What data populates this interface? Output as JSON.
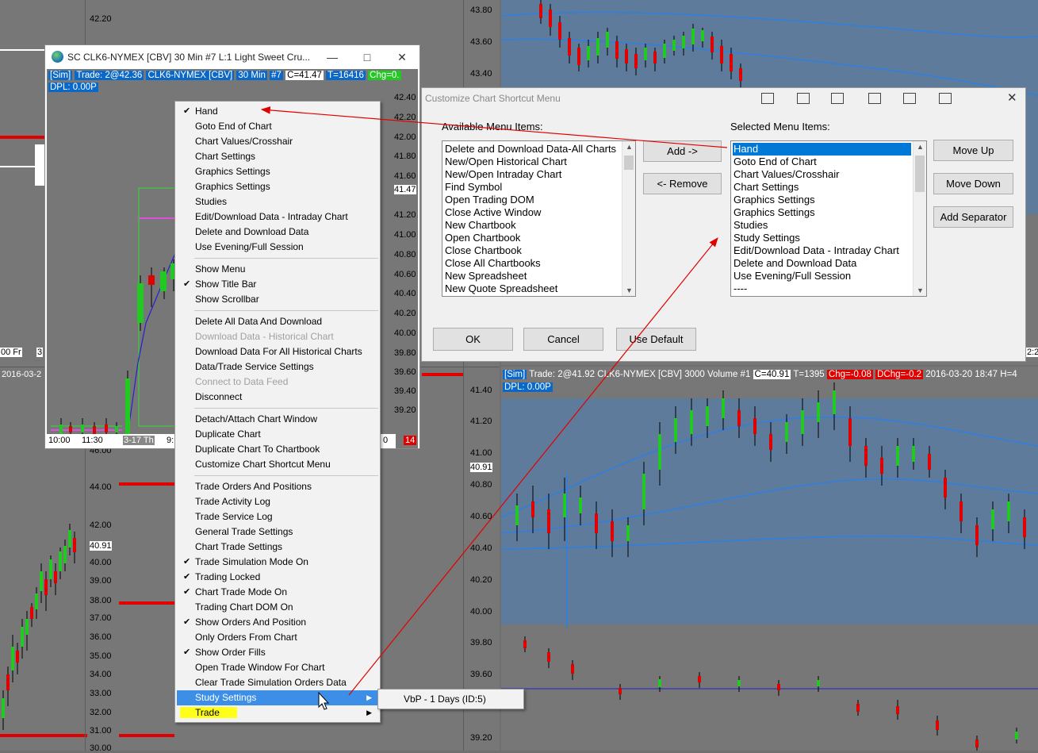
{
  "left_axis": [
    "42.20",
    "46.00",
    "44.00",
    "42.00",
    "40.91",
    "40.00",
    "39.00",
    "38.00",
    "37.00",
    "36.00",
    "35.00",
    "34.00",
    "33.00",
    "32.00",
    "31.00",
    "30.00"
  ],
  "left_chart": {
    "date_label": "2016-03-2",
    "bottom_labels": [
      "00 Fr",
      "3"
    ]
  },
  "mid_axis": [
    "43.80",
    "43.60",
    "43.40",
    "41.40",
    "41.20",
    "41.00",
    "40.91",
    "40.80",
    "40.60",
    "40.40",
    "40.20",
    "40.00",
    "39.80",
    "39.60",
    "39.40",
    "39.20"
  ],
  "right_top_chart": {
    "corner_time": "2:2"
  },
  "right_chart": {
    "status": {
      "sim": "[Sim]",
      "trade": "Trade: 2@41.92",
      "symbol": "CLK6-NYMEX [CBV]",
      "period": "3000 Volume",
      "num": "#1",
      "c": "C=40.91",
      "t": "T=1395",
      "chg": "Chg=-0.08",
      "dchg": "DChg=-0.2",
      "date": "2016-03-20",
      "time": "18:47",
      "h": "H=4"
    },
    "dpl": "DPL: 0.00P"
  },
  "chart_window": {
    "title": "SC CLK6-NYMEX [CBV] 30 Min #7  L:1  Light Sweet Cru...",
    "status": {
      "sim": "[Sim]",
      "trade": "Trade: 2@42.36",
      "symbol": "CLK6-NYMEX [CBV]",
      "period": "30 Min",
      "num": "#7",
      "c": "C=41.47",
      "t": "T=16416",
      "chg": "Chg=0."
    },
    "dpl": "DPL: 0.00P",
    "axis": [
      "42.40",
      "42.20",
      "42.00",
      "41.80",
      "41.60",
      "41.47",
      "41.20",
      "41.00",
      "40.80",
      "40.60",
      "40.40",
      "40.20",
      "40.00",
      "39.80",
      "39.60",
      "39.40",
      "39.20"
    ],
    "x_labels": [
      "10:00",
      "11:30",
      "3-17 Th",
      "9:",
      "0"
    ],
    "badge": "14"
  },
  "context_menu": {
    "group1": [
      {
        "label": "Hand",
        "checked": true
      },
      {
        "label": "Goto End of Chart"
      },
      {
        "label": "Chart Values/Crosshair"
      },
      {
        "label": "Chart Settings"
      },
      {
        "label": "Graphics Settings"
      },
      {
        "label": "Graphics Settings"
      },
      {
        "label": "Studies"
      },
      {
        "label": "Edit/Download Data - Intraday Chart"
      },
      {
        "label": "Delete and Download Data"
      },
      {
        "label": "Use Evening/Full Session"
      }
    ],
    "group2": [
      {
        "label": "Show Menu"
      },
      {
        "label": "Show Title Bar",
        "checked": true
      },
      {
        "label": "Show Scrollbar"
      }
    ],
    "group3": [
      {
        "label": "Delete All Data And Download"
      },
      {
        "label": "Download Data - Historical Chart",
        "disabled": true
      },
      {
        "label": "Download Data For All Historical Charts"
      },
      {
        "label": "Data/Trade Service Settings"
      },
      {
        "label": "Connect to Data Feed",
        "disabled": true
      },
      {
        "label": "Disconnect"
      }
    ],
    "group4": [
      {
        "label": "Detach/Attach Chart Window"
      },
      {
        "label": "Duplicate Chart"
      },
      {
        "label": "Duplicate Chart To Chartbook"
      },
      {
        "label": "Customize Chart Shortcut Menu"
      }
    ],
    "group5": [
      {
        "label": "Trade Orders And Positions"
      },
      {
        "label": "Trade Activity Log"
      },
      {
        "label": "Trade Service Log"
      },
      {
        "label": "General Trade Settings"
      },
      {
        "label": "Chart Trade Settings"
      },
      {
        "label": "Trade Simulation Mode On",
        "checked": true
      },
      {
        "label": "Trading Locked",
        "checked": true
      },
      {
        "label": "Chart Trade Mode On",
        "checked": true
      },
      {
        "label": "Trading Chart DOM On"
      },
      {
        "label": "Show Orders And Position",
        "checked": true
      },
      {
        "label": "Only Orders From Chart"
      },
      {
        "label": "Show Order Fills",
        "checked": true
      },
      {
        "label": "Open Trade Window For Chart"
      },
      {
        "label": "Clear Trade Simulation Orders  Data"
      },
      {
        "label": "Study Settings",
        "selected": true,
        "submenu": true
      },
      {
        "label": "Trade",
        "highlight": "#ffff1a",
        "submenu": true
      }
    ],
    "check_glyph": "✔",
    "submenu_glyph": "▶"
  },
  "submenu": {
    "item": "VbP - 1 Days (ID:5)"
  },
  "dialog": {
    "title": "Customize Chart Shortcut Menu",
    "available_label": "Available Menu Items:",
    "selected_label": "Selected Menu Items:",
    "available_items": [
      "Delete and Download Data-All Charts",
      "New/Open Historical Chart",
      "New/Open Intraday Chart",
      "Find Symbol",
      "Open Trading DOM",
      "Close Active Window",
      "New Chartbook",
      "Open Chartbook",
      "Close Chartbook",
      "Close All Chartbooks",
      "New Spreadsheet",
      "New Quote Spreadsheet"
    ],
    "selected_items": [
      "Hand",
      "Goto End of Chart",
      "Chart Values/Crosshair",
      "Chart Settings",
      "Graphics Settings",
      "Graphics Settings",
      "Studies",
      "Study Settings",
      "Edit/Download Data - Intraday Chart",
      "Delete and Download Data",
      "Use Evening/Full Session",
      "----"
    ],
    "buttons": {
      "add": "Add ->",
      "remove": "<- Remove",
      "move_up": "Move Up",
      "move_down": "Move Down",
      "add_separator": "Add Separator",
      "ok": "OK",
      "cancel": "Cancel",
      "use_default": "Use Default"
    },
    "close": "✕"
  },
  "colors": {
    "accent": "#3d8ee6",
    "selection": "#0078d7",
    "highlight": "#ffff1a",
    "annotation_arrow": "#e00000",
    "candle_up": "#22c922",
    "candle_down": "#e00000"
  }
}
